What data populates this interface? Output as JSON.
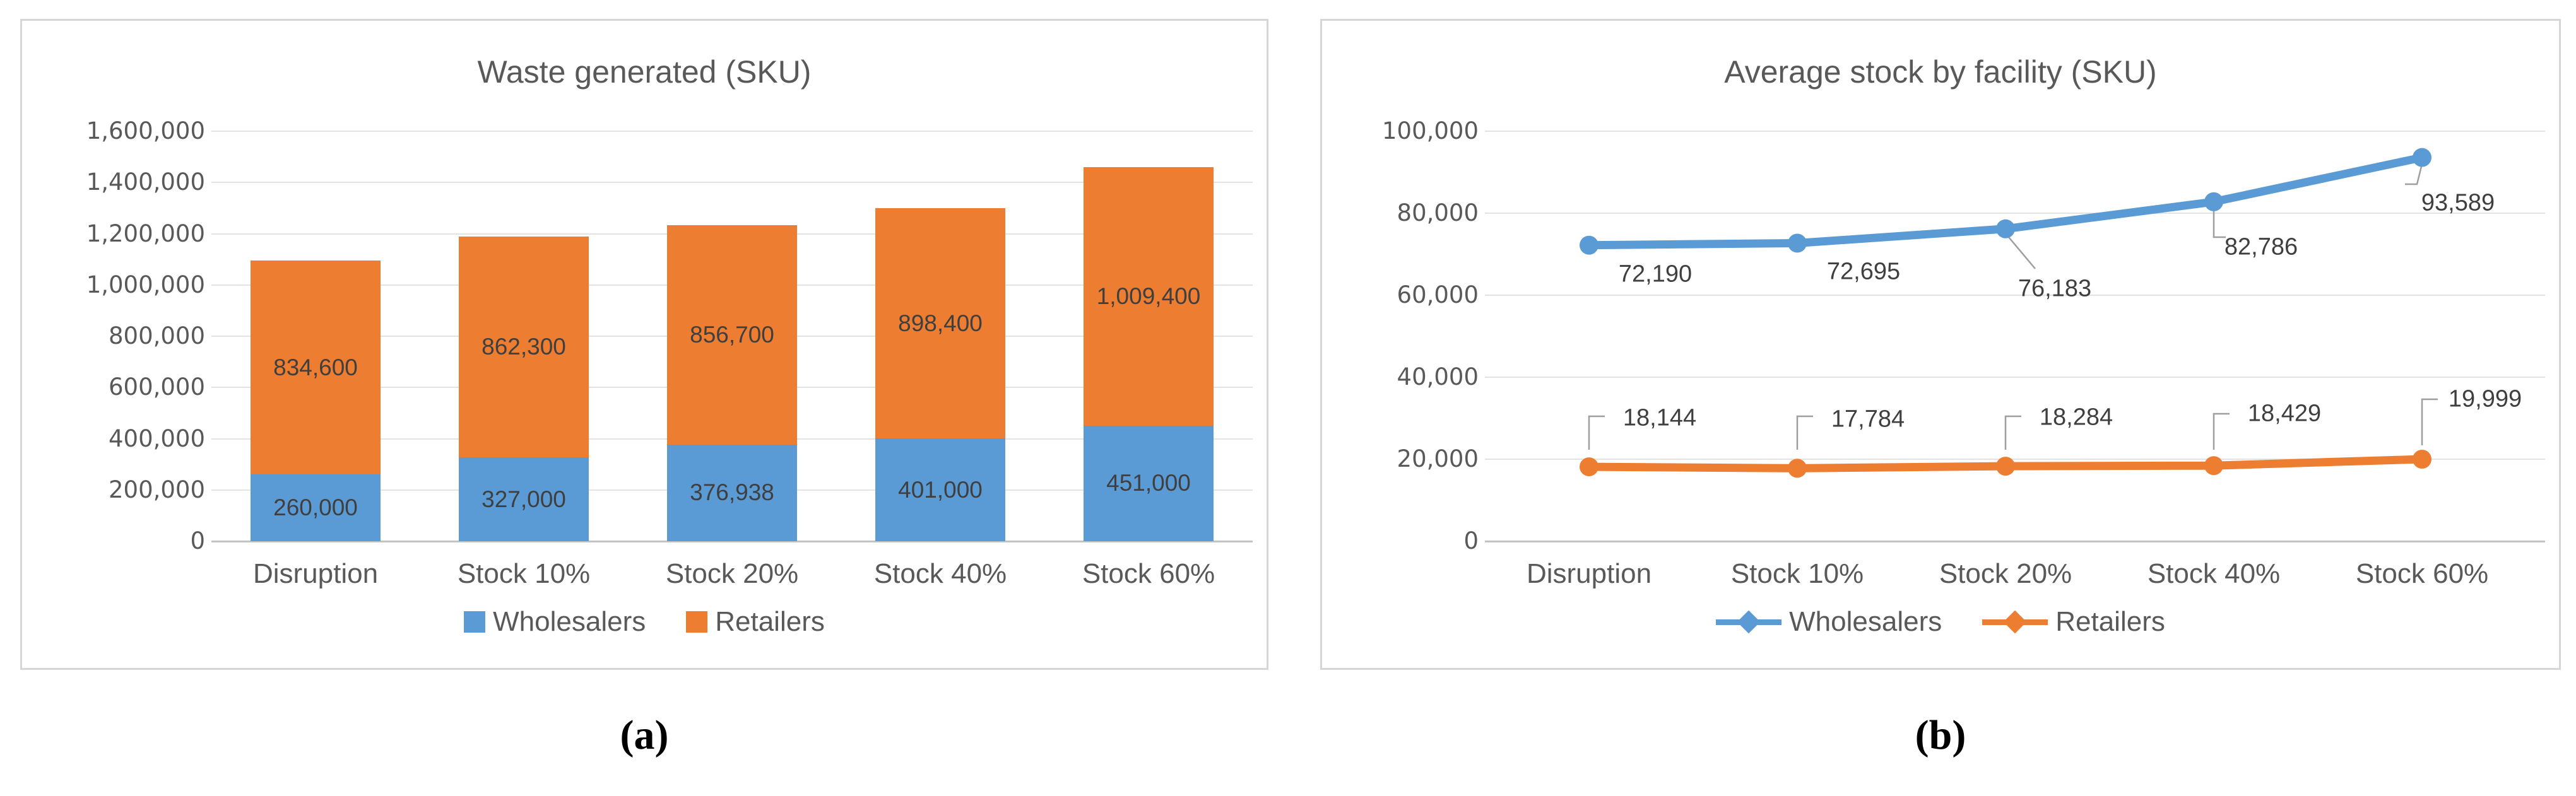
{
  "captions": {
    "a": "(a)",
    "b": "(b)"
  },
  "colors": {
    "wholesalers": "#5B9BD5",
    "retailers": "#ED7D31",
    "title_text": "#595959",
    "axis_text": "#595959",
    "data_label_text": "#3F3F3F",
    "gridline": "#E3E3E3",
    "axis_line": "#C3C3C3",
    "leader_line": "#9E9E9E",
    "panel_border": "#D6D6D6"
  },
  "chart_data": [
    {
      "type": "bar",
      "stacked": true,
      "title": "Waste generated (SKU)",
      "categories": [
        "Disruption",
        "Stock 10%",
        "Stock 20%",
        "Stock 40%",
        "Stock 60%"
      ],
      "series": [
        {
          "name": "Wholesalers",
          "color": "#5B9BD5",
          "values": [
            260000,
            327000,
            376938,
            401000,
            451000
          ],
          "data_labels": [
            "260,000",
            "327,000",
            "376,938",
            "401,000",
            "451,000"
          ]
        },
        {
          "name": "Retailers",
          "color": "#ED7D31",
          "values": [
            834600,
            862300,
            856700,
            898400,
            1009400
          ],
          "data_labels": [
            "834,600",
            "862,300",
            "856,700",
            "898,400",
            "1,009,400"
          ]
        }
      ],
      "ylim": [
        0,
        1600000
      ],
      "ytick_labels": [
        "0",
        "200,000",
        "400,000",
        "600,000",
        "800,000",
        "1,000,000",
        "1,200,000",
        "1,400,000",
        "1,600,000"
      ],
      "grid": true,
      "legend_position": "bottom",
      "legend": [
        "Wholesalers",
        "Retailers"
      ]
    },
    {
      "type": "line",
      "title": "Average stock by facility (SKU)",
      "categories": [
        "Disruption",
        "Stock 10%",
        "Stock 20%",
        "Stock 40%",
        "Stock 60%"
      ],
      "series": [
        {
          "name": "Wholesalers",
          "color": "#5B9BD5",
          "values": [
            72190,
            72695,
            76183,
            82786,
            93589
          ],
          "data_labels": [
            "72,190",
            "72,695",
            "76,183",
            "82,786",
            "93,589"
          ]
        },
        {
          "name": "Retailers",
          "color": "#ED7D31",
          "values": [
            18144,
            17784,
            18284,
            18429,
            19999
          ],
          "data_labels": [
            "18,144",
            "17,784",
            "18,284",
            "18,429",
            "19,999"
          ]
        }
      ],
      "ylim": [
        0,
        100000
      ],
      "ytick_labels": [
        "0",
        "20,000",
        "40,000",
        "60,000",
        "80,000",
        "100,000"
      ],
      "grid": true,
      "legend_position": "bottom",
      "legend": [
        "Wholesalers",
        "Retailers"
      ]
    }
  ]
}
